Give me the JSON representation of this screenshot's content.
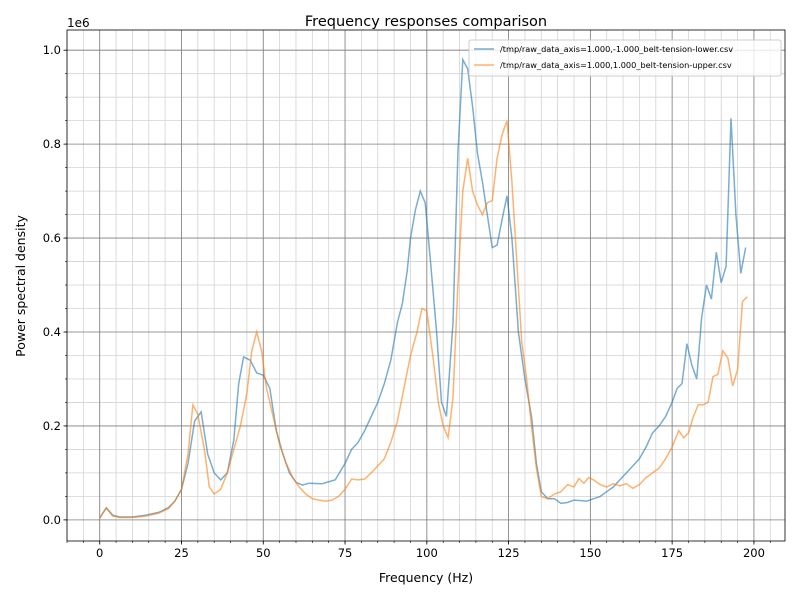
{
  "chart_data": {
    "type": "line",
    "title": "Frequency responses comparison",
    "xlabel": "Frequency (Hz)",
    "ylabel": "Power spectral density",
    "y_offset_label": "1e6",
    "xlim": [
      -10,
      209.5
    ],
    "ylim": [
      -0.045,
      1.043
    ],
    "xticks": [
      0,
      25,
      50,
      75,
      100,
      125,
      150,
      175,
      200
    ],
    "yticks": [
      {
        "value": 0,
        "label": "0.0"
      },
      0.2,
      0.4,
      0.6,
      0.8,
      {
        "value": 1,
        "label": "1.0"
      }
    ],
    "minor_xtick_step": 5,
    "minor_ytick_step": 0.05,
    "grid": true,
    "legend": "upper right",
    "alpha": 0.6,
    "series": [
      {
        "name": "/tmp/raw_data_axis=1.000,-1.000_belt-tension-lower.csv",
        "color": "#1f77b4",
        "x": [
          0,
          2,
          4,
          6,
          10,
          14,
          18,
          21,
          23,
          25,
          27,
          29,
          31,
          33,
          35,
          37,
          39,
          41,
          42.5,
          44,
          46,
          48,
          50,
          52,
          54,
          56,
          58,
          60,
          62,
          64,
          68,
          72,
          75,
          77,
          79,
          81,
          83,
          85,
          87,
          89,
          91,
          92.5,
          94,
          95,
          96.5,
          98,
          99.5,
          101,
          103,
          104.5,
          106,
          108,
          109.5,
          111,
          112.5,
          114,
          115.5,
          117,
          118.5,
          120,
          121.5,
          123,
          124.5,
          126,
          128,
          130,
          132,
          133.5,
          135,
          137,
          139,
          141,
          143,
          145,
          147,
          149,
          151,
          153,
          155,
          157,
          159,
          161,
          163,
          165,
          167,
          169,
          171,
          173,
          175,
          176.5,
          178,
          179.5,
          181,
          182.5,
          184,
          185.5,
          187,
          188.5,
          190,
          191.5,
          193,
          194.5,
          196,
          197.5
        ],
        "values": [
          0.004,
          0.026,
          0.01,
          0.006,
          0.006,
          0.01,
          0.016,
          0.026,
          0.04,
          0.065,
          0.12,
          0.21,
          0.23,
          0.14,
          0.1,
          0.085,
          0.1,
          0.17,
          0.29,
          0.347,
          0.34,
          0.313,
          0.308,
          0.28,
          0.19,
          0.14,
          0.1,
          0.08,
          0.074,
          0.078,
          0.077,
          0.085,
          0.12,
          0.15,
          0.165,
          0.19,
          0.22,
          0.25,
          0.29,
          0.34,
          0.42,
          0.46,
          0.53,
          0.6,
          0.66,
          0.7,
          0.675,
          0.56,
          0.4,
          0.25,
          0.22,
          0.42,
          0.78,
          0.98,
          0.96,
          0.88,
          0.78,
          0.72,
          0.65,
          0.58,
          0.585,
          0.64,
          0.69,
          0.6,
          0.4,
          0.3,
          0.22,
          0.12,
          0.06,
          0.045,
          0.045,
          0.035,
          0.037,
          0.042,
          0.041,
          0.04,
          0.045,
          0.05,
          0.06,
          0.07,
          0.085,
          0.1,
          0.115,
          0.13,
          0.155,
          0.185,
          0.2,
          0.22,
          0.25,
          0.28,
          0.29,
          0.375,
          0.33,
          0.3,
          0.43,
          0.5,
          0.47,
          0.57,
          0.505,
          0.54,
          0.855,
          0.65,
          0.525,
          0.58
        ]
      },
      {
        "name": "/tmp/raw_data_axis=1.000,1.000_belt-tension-upper.csv",
        "color": "#ff7f0e",
        "x": [
          0,
          2,
          4,
          6,
          10,
          14,
          18,
          21,
          23,
          25,
          27,
          28.5,
          30,
          32,
          33.5,
          35,
          37,
          39,
          41,
          43,
          45,
          46.5,
          48,
          49.5,
          51,
          53,
          55,
          57,
          59,
          61,
          63,
          65,
          67,
          69,
          71,
          73,
          75,
          77,
          79,
          81,
          83,
          85,
          87,
          89,
          91,
          93,
          95,
          97,
          98.5,
          100,
          102,
          103.5,
          105,
          106.5,
          108,
          109.5,
          111,
          112.5,
          114,
          115.5,
          117,
          118.5,
          120,
          121.5,
          123,
          124.5,
          126,
          127.5,
          129,
          130.5,
          132,
          133.5,
          135,
          137,
          139,
          141,
          143,
          145,
          146.5,
          148,
          149.5,
          151,
          153,
          155,
          157,
          159,
          161,
          163,
          165,
          167,
          169,
          171,
          173,
          175,
          177,
          178.5,
          180,
          181.5,
          183,
          184.5,
          186,
          187.5,
          189,
          190.5,
          192,
          193.5,
          195,
          196.5,
          198
        ],
        "values": [
          0.004,
          0.025,
          0.008,
          0.005,
          0.005,
          0.008,
          0.014,
          0.024,
          0.04,
          0.065,
          0.14,
          0.245,
          0.225,
          0.15,
          0.07,
          0.055,
          0.065,
          0.1,
          0.15,
          0.2,
          0.27,
          0.36,
          0.4,
          0.36,
          0.28,
          0.22,
          0.16,
          0.12,
          0.09,
          0.07,
          0.055,
          0.045,
          0.042,
          0.04,
          0.042,
          0.05,
          0.065,
          0.087,
          0.085,
          0.087,
          0.1,
          0.115,
          0.13,
          0.165,
          0.21,
          0.28,
          0.35,
          0.4,
          0.45,
          0.445,
          0.34,
          0.25,
          0.2,
          0.175,
          0.26,
          0.5,
          0.7,
          0.77,
          0.7,
          0.67,
          0.65,
          0.675,
          0.68,
          0.77,
          0.82,
          0.85,
          0.72,
          0.55,
          0.38,
          0.3,
          0.2,
          0.11,
          0.05,
          0.045,
          0.055,
          0.06,
          0.075,
          0.07,
          0.088,
          0.078,
          0.09,
          0.085,
          0.075,
          0.07,
          0.077,
          0.072,
          0.077,
          0.067,
          0.075,
          0.09,
          0.1,
          0.11,
          0.13,
          0.155,
          0.19,
          0.175,
          0.185,
          0.22,
          0.245,
          0.245,
          0.25,
          0.305,
          0.31,
          0.36,
          0.345,
          0.285,
          0.32,
          0.465,
          0.475
        ]
      }
    ]
  }
}
